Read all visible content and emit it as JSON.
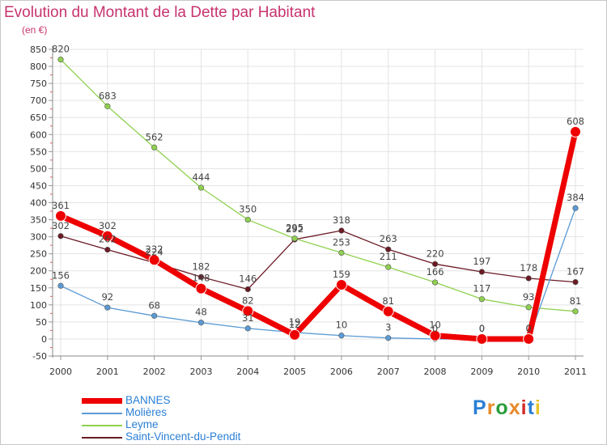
{
  "header": {
    "title": "Evolution du Montant de la Dette par Habitant",
    "subtitle": "(en €)"
  },
  "logo": {
    "text": "Proxiti",
    "colors": [
      "#2a7fd5",
      "#e8892a",
      "#2a9d3a",
      "#e8892a",
      "#d42a2a",
      "#2a7fd5",
      "#e8c52a"
    ]
  },
  "chart_data": {
    "type": "line",
    "x": [
      "2000",
      "2001",
      "2002",
      "2003",
      "2004",
      "2005",
      "2006",
      "2007",
      "2008",
      "2009",
      "2010",
      "2011"
    ],
    "ylim": [
      -50,
      850
    ],
    "yticks": [
      -50,
      0,
      50,
      100,
      150,
      200,
      250,
      300,
      350,
      400,
      450,
      500,
      550,
      600,
      650,
      700,
      750,
      800,
      850
    ],
    "grid": true,
    "legend_placement": "bottom-left",
    "series": [
      {
        "name": "Saint-Vincent-du-Pendit",
        "color": "#6b1a24",
        "values": [
          302,
          262,
          224,
          182,
          146,
          292,
          318,
          263,
          220,
          197,
          178,
          167
        ],
        "labels": [
          "302",
          "262",
          "224",
          "182",
          "146",
          "292",
          "318",
          "263",
          "220",
          "197",
          "178",
          "167"
        ]
      },
      {
        "name": "Leyme",
        "color": "#8fd14f",
        "values": [
          820,
          683,
          562,
          444,
          350,
          295,
          253,
          211,
          166,
          117,
          93,
          81
        ],
        "labels": [
          "820",
          "683",
          "562",
          "444",
          "350",
          "295",
          "253",
          "211",
          "166",
          "117",
          "93",
          "81"
        ]
      },
      {
        "name": "Molières",
        "color": "#5b9bd5",
        "values": [
          156,
          92,
          68,
          48,
          31,
          19,
          10,
          3,
          0,
          0,
          0,
          384
        ],
        "labels": [
          "156",
          "92",
          "68",
          "48",
          "31",
          "19",
          "10",
          "3",
          "0",
          "0",
          "0",
          "384"
        ]
      },
      {
        "name": "BANNES",
        "color": "#ee0000",
        "values": [
          361,
          302,
          232,
          148,
          82,
          12,
          159,
          81,
          10,
          0,
          0,
          608
        ],
        "labels": [
          "361",
          "302",
          "232",
          "148",
          "82",
          "12",
          "159",
          "81",
          "10",
          "0",
          "0",
          "608"
        ]
      }
    ]
  }
}
